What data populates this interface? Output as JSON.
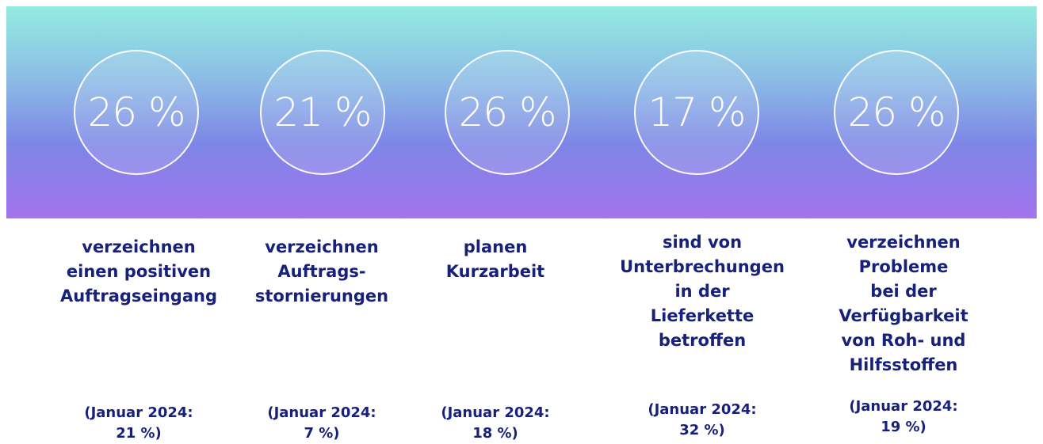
{
  "items": [
    {
      "value": "26 %",
      "description": [
        "verzeichnen",
        "einen positiven",
        "Auftragseingang"
      ],
      "comparison": [
        "(Januar 2024:",
        "21 %)"
      ]
    },
    {
      "value": "21 %",
      "description": [
        "verzeichnen",
        "Auftrags-",
        "stornierungen"
      ],
      "comparison": [
        "(Januar 2024:",
        "7 %)"
      ]
    },
    {
      "value": "26 %",
      "description": [
        "planen",
        "Kurzarbeit"
      ],
      "comparison": [
        "(Januar 2024:",
        "18 %)"
      ]
    },
    {
      "value": "17 %",
      "description": [
        "sind von",
        "Unterbrechungen",
        "in der",
        "Lieferkette",
        "betroffen"
      ],
      "comparison": [
        "(Januar 2024:",
        "32 %)"
      ]
    },
    {
      "value": "26 %",
      "description": [
        "verzeichnen",
        "Probleme",
        "bei der",
        "Verfügbarkeit",
        "von Roh- und",
        "Hilfsstoffen"
      ],
      "comparison": [
        "(Januar 2024:",
        "19 %)"
      ]
    }
  ]
}
